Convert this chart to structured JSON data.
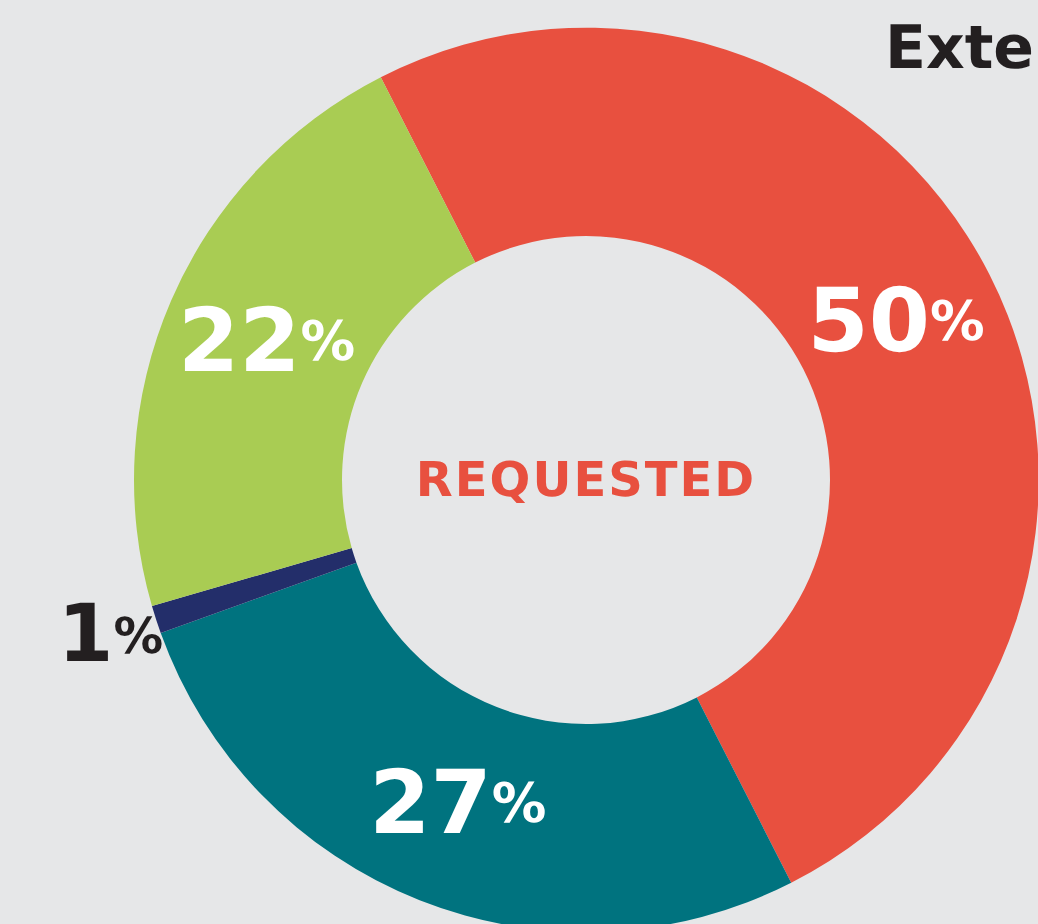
{
  "chart_data": {
    "type": "donut",
    "title": "REQUESTED",
    "annotations": [
      "Exte"
    ],
    "categories": [
      null,
      null,
      null,
      null
    ],
    "values": [
      50,
      27,
      1,
      22
    ],
    "colors": [
      "#e8503f",
      "#00737f",
      "#232e6a",
      "#a9cc53"
    ],
    "value_labels": [
      "50%",
      "27%",
      "1%",
      "22%"
    ]
  }
}
